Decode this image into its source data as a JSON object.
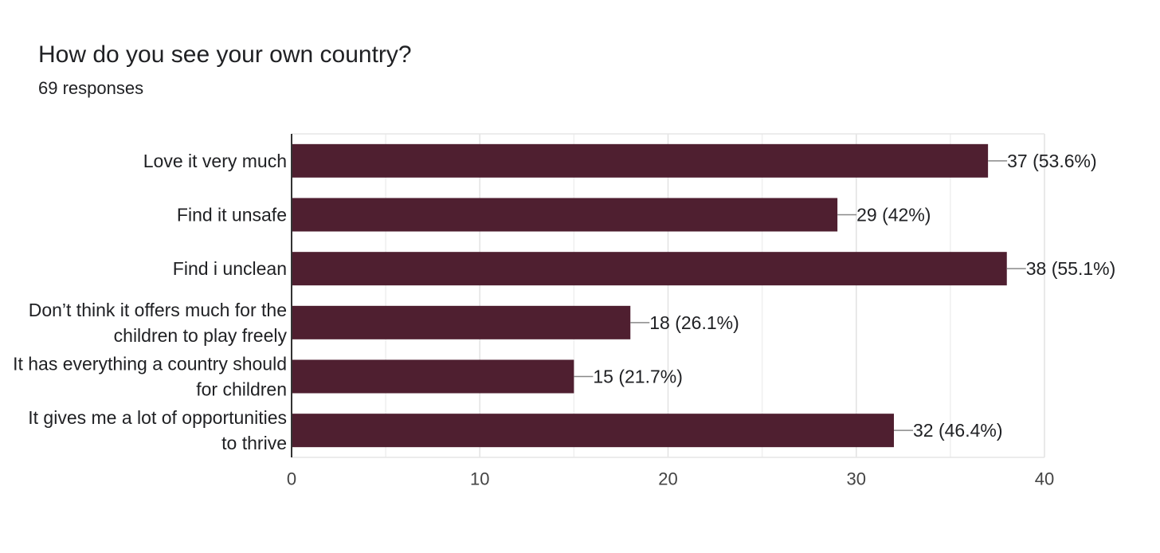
{
  "header": {
    "title": "How do you see your own country?",
    "responses": "69 responses"
  },
  "colors": {
    "bar": "#4f1f30",
    "grid": "#e6e6e6",
    "axis": "#333333",
    "leader": "#888888"
  },
  "chart_data": {
    "type": "bar",
    "orientation": "horizontal",
    "title": "How do you see your own country?",
    "categories": [
      [
        "Love it very much"
      ],
      [
        "Find it unsafe"
      ],
      [
        "Find i unclean"
      ],
      [
        "Don’t think it offers much for the",
        "children to play freely"
      ],
      [
        "It has everything a country should",
        "for children"
      ],
      [
        "It gives me a lot of opportunities",
        "to thrive"
      ]
    ],
    "values": [
      37,
      29,
      38,
      18,
      15,
      32
    ],
    "value_labels": [
      "37 (53.6%)",
      "29 (42%)",
      "38 (55.1%)",
      "18 (26.1%)",
      "15 (21.7%)",
      "32 (46.4%)"
    ],
    "xlim": [
      0,
      40
    ],
    "xticks": [
      0,
      10,
      20,
      30,
      40
    ],
    "grid": true
  }
}
